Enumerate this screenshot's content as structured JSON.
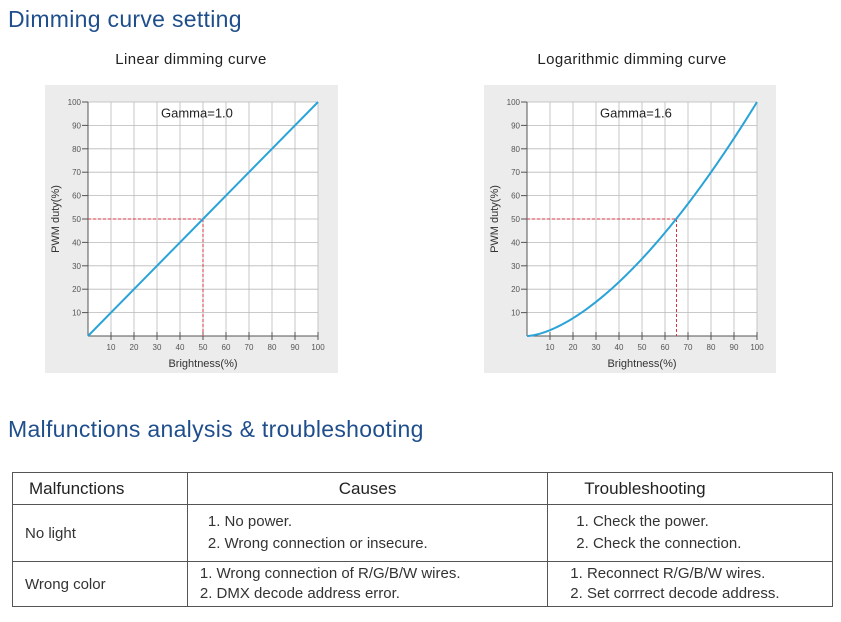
{
  "section_dimming_title": "Dimming curve setting",
  "section_malfunction_title": "Malfunctions analysis & troubleshooting",
  "chart_data": [
    {
      "type": "line",
      "caption": "Linear dimming curve",
      "annotation": "Gamma=1.0",
      "gamma": 1.0,
      "xlabel": "Brightness(%)",
      "ylabel": "PWM duty(%)",
      "xlim": [
        0,
        100
      ],
      "ylim": [
        0,
        100
      ],
      "x_ticks": [
        10,
        20,
        30,
        40,
        50,
        60,
        70,
        80,
        90,
        100
      ],
      "y_ticks": [
        10,
        20,
        30,
        40,
        50,
        60,
        70,
        80,
        90,
        100
      ],
      "grid": true,
      "line_color": "#2aa3d8",
      "x": [
        0,
        10,
        20,
        30,
        40,
        50,
        60,
        70,
        80,
        90,
        100
      ],
      "y": [
        0,
        10,
        20,
        30,
        40,
        50,
        60,
        70,
        80,
        90,
        100
      ],
      "marker": {
        "x": 50,
        "y": 50
      }
    },
    {
      "type": "line",
      "caption": "Logarithmic dimming curve",
      "annotation": "Gamma=1.6",
      "gamma": 1.6,
      "xlabel": "Brightness(%)",
      "ylabel": "PWM duty(%)",
      "xlim": [
        0,
        100
      ],
      "ylim": [
        0,
        100
      ],
      "x_ticks": [
        10,
        20,
        30,
        40,
        50,
        60,
        70,
        80,
        90,
        100
      ],
      "y_ticks": [
        10,
        20,
        30,
        40,
        50,
        60,
        70,
        80,
        90,
        100
      ],
      "grid": true,
      "line_color": "#2aa3d8",
      "x": [
        0,
        10,
        20,
        30,
        40,
        50,
        60,
        70,
        80,
        90,
        100
      ],
      "y": [
        0,
        2.5,
        7.6,
        14.5,
        23.1,
        33.0,
        44.2,
        56.5,
        70.0,
        84.5,
        100
      ],
      "marker": {
        "x": 65,
        "y": 50
      }
    }
  ],
  "table": {
    "headers": [
      "Malfunctions",
      "Causes",
      "Troubleshooting"
    ],
    "rows": [
      {
        "malfunction": "No light",
        "causes": [
          "1. No power.",
          "2. Wrong connection or insecure."
        ],
        "troubleshooting": [
          "1. Check the power.",
          "2. Check the connection."
        ]
      },
      {
        "malfunction": "Wrong color",
        "causes": [
          "1. Wrong connection of R/G/B/W wires.",
          "2. DMX decode address error."
        ],
        "troubleshooting": [
          "1. Reconnect R/G/B/W wires.",
          "2. Set corrrect decode address."
        ]
      }
    ]
  }
}
